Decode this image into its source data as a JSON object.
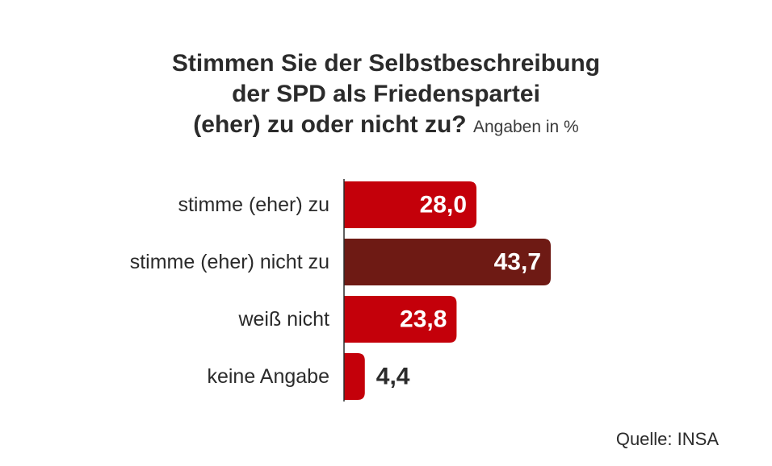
{
  "chart_data": {
    "type": "bar",
    "orientation": "horizontal",
    "title_lines": [
      "Stimmen Sie der Selbstbeschreibung",
      "der SPD als Friedenspartei",
      "(eher) zu oder nicht zu?"
    ],
    "unit_label": "Angaben in %",
    "categories": [
      "stimme (eher) zu",
      "stimme (eher) nicht zu",
      "weiß nicht",
      "keine Angabe"
    ],
    "values": [
      28.0,
      43.7,
      23.8,
      4.4
    ],
    "value_labels": [
      "28,0",
      "43,7",
      "23,8",
      "4,4"
    ],
    "colors": [
      "#c4000a",
      "#6e1a14",
      "#c4000a",
      "#c4000a"
    ],
    "label_color_inside": "#ffffff",
    "label_color_outside": "#2b2b2b",
    "xlim": [
      0,
      43.7
    ],
    "grid": false,
    "legend": "none"
  },
  "source": "Quelle: INSA"
}
